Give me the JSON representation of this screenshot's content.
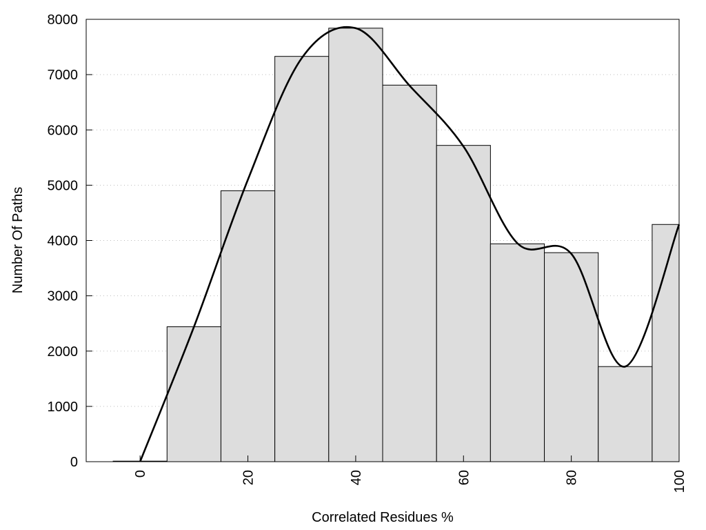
{
  "chart_data": {
    "type": "bar",
    "title": "",
    "xlabel": "Correlated Residues %",
    "ylabel": "Number Of Paths",
    "categories": [
      0,
      10,
      20,
      30,
      40,
      50,
      60,
      70,
      80,
      90,
      100
    ],
    "values": [
      10,
      2440,
      4900,
      7330,
      7840,
      6810,
      5720,
      3940,
      3780,
      1720,
      4290
    ],
    "bin_width": 10,
    "overlay_line": {
      "type": "line",
      "smooth": true,
      "x": [
        0,
        10,
        20,
        30,
        40,
        50,
        60,
        70,
        80,
        90,
        100
      ],
      "y": [
        0,
        2440,
        5100,
        7300,
        7840,
        6800,
        5700,
        3950,
        3760,
        1720,
        4290
      ]
    },
    "xlim": [
      -10,
      100
    ],
    "ylim": [
      0,
      8000
    ],
    "xticks": [
      "0",
      "20",
      "40",
      "60",
      "80",
      "100"
    ],
    "yticks": [
      "0",
      "1000",
      "2000",
      "3000",
      "4000",
      "5000",
      "6000",
      "7000",
      "8000"
    ],
    "grid": "horizontal dotted",
    "colors": {
      "bar": "#dddddd",
      "bar_edge": "#000000",
      "line": "#000000",
      "grid": "#bbbbbb"
    }
  }
}
